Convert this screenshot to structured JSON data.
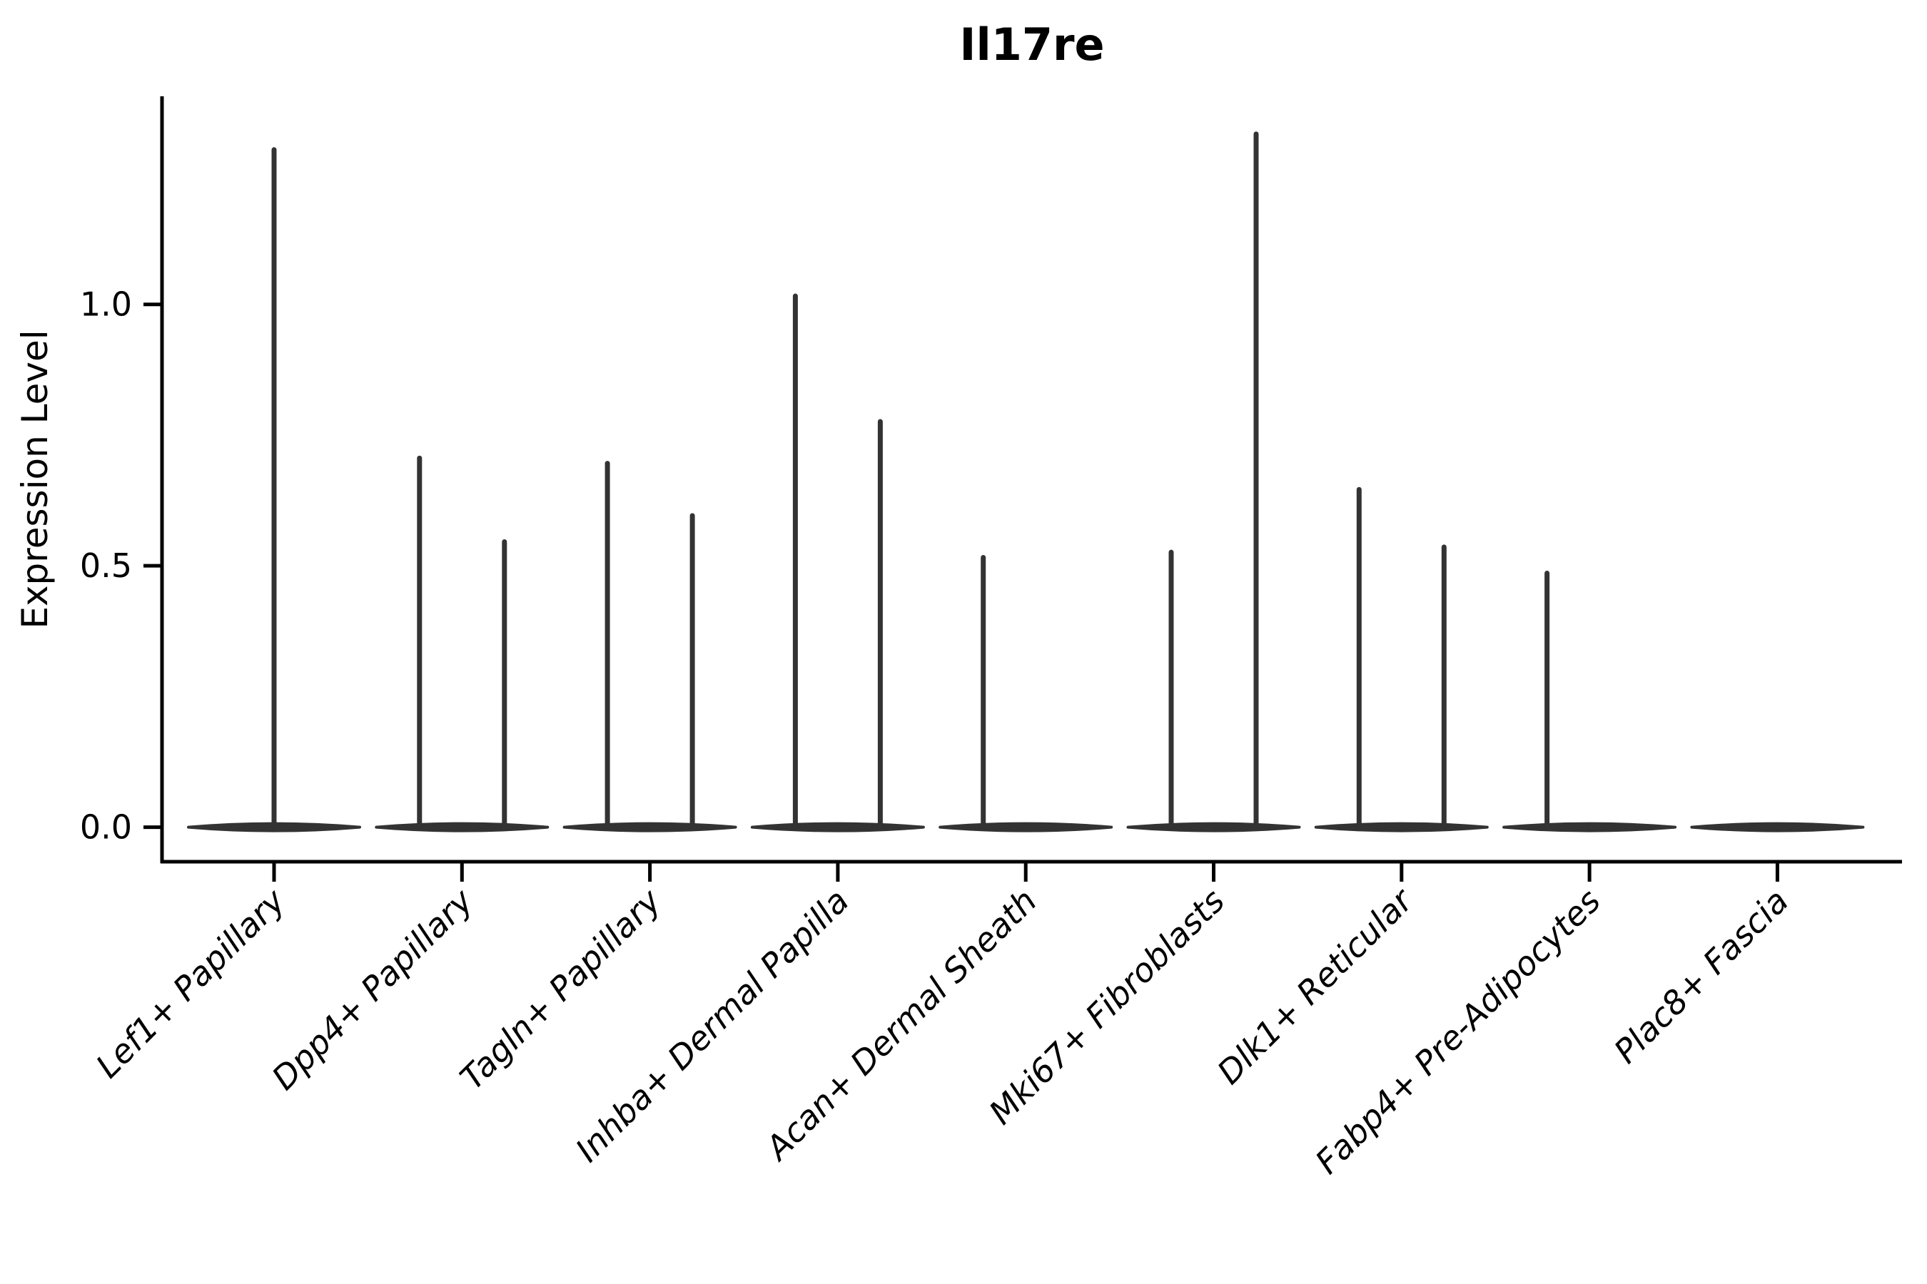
{
  "figure": {
    "title": "Il17re",
    "ylabel": "Expression Level"
  },
  "chart_data": {
    "type": "violin",
    "title": "Il17re",
    "xlabel": "",
    "ylabel": "Expression Level",
    "ylim": [
      -0.066,
      1.398
    ],
    "grid": false,
    "legend": null,
    "yticks": [
      {
        "value": 0.0,
        "label": "0.0"
      },
      {
        "value": 0.5,
        "label": "0.5"
      },
      {
        "value": 1.0,
        "label": "1.0"
      }
    ],
    "categories": [
      "Lef1+ Papillary",
      "Dpp4+ Papillary",
      "Tagln+ Papillary",
      "Inhba+ Dermal Papilla",
      "Acan+ Dermal Sheath",
      "Mki67+ Fibroblasts",
      "Dlk1+ Reticular",
      "Fabp4+ Pre-Adipocytes",
      "Plac8+ Fascia"
    ],
    "violins": [
      {
        "category": "Lef1+ Papillary",
        "layout": "single",
        "baseline": 0.0,
        "tails": [
          1.3
        ]
      },
      {
        "category": "Dpp4+ Papillary",
        "layout": "split",
        "baseline": 0.0,
        "tails": [
          0.71,
          0.55
        ]
      },
      {
        "category": "Tagln+ Papillary",
        "layout": "split",
        "baseline": 0.0,
        "tails": [
          0.7,
          0.6
        ]
      },
      {
        "category": "Inhba+ Dermal Papilla",
        "layout": "split",
        "baseline": 0.0,
        "tails": [
          1.02,
          0.78
        ]
      },
      {
        "category": "Acan+ Dermal Sheath",
        "layout": "split",
        "baseline": 0.0,
        "tails": [
          0.52,
          null
        ]
      },
      {
        "category": "Mki67+ Fibroblasts",
        "layout": "split",
        "baseline": 0.0,
        "tails": [
          0.53,
          1.33
        ]
      },
      {
        "category": "Dlk1+ Reticular",
        "layout": "split",
        "baseline": 0.0,
        "tails": [
          0.65,
          0.54
        ]
      },
      {
        "category": "Fabp4+ Pre-Adipocytes",
        "layout": "split",
        "baseline": 0.0,
        "tails": [
          0.49,
          null
        ]
      },
      {
        "category": "Plac8+ Fascia",
        "layout": "split",
        "baseline": 0.0,
        "tails": [
          null,
          null
        ]
      }
    ],
    "style": {
      "violin_color": "#333333",
      "axis_color": "#000000",
      "text_color": "#000000",
      "background": "#ffffff"
    }
  }
}
